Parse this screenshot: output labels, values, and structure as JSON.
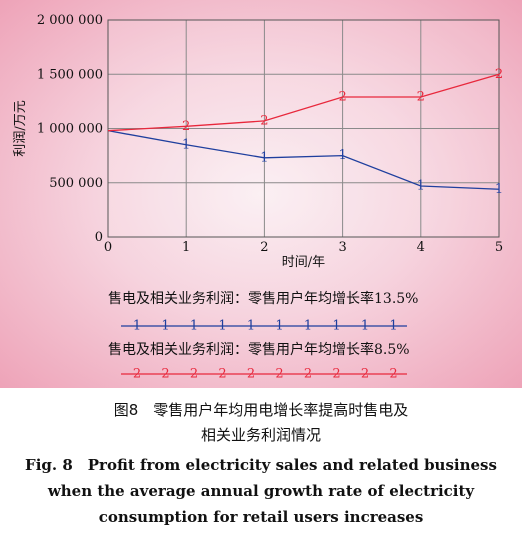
{
  "chart_data": {
    "type": "line",
    "xlabel": "时间/年",
    "ylabel": "利润/万元",
    "x": [
      0,
      1,
      2,
      3,
      4,
      5
    ],
    "xlim": [
      0,
      5
    ],
    "ylim": [
      0,
      2000000
    ],
    "y_ticks": [
      0,
      500000,
      1000000,
      1500000,
      2000000
    ],
    "y_tick_labels": [
      "0",
      "500 000",
      "1 000 000",
      "1 500 000",
      "2 000 000"
    ],
    "x_tick_labels": [
      "0",
      "1",
      "2",
      "3",
      "4",
      "5"
    ],
    "grid": true,
    "legend_position": "bottom",
    "series": [
      {
        "name": "售电及相关业务利润：零售用户年均增长率13.5%",
        "marker": "1",
        "color": "#1f3f9e",
        "values": [
          980000,
          850000,
          730000,
          750000,
          470000,
          440000
        ]
      },
      {
        "name": "售电及相关业务利润：零售用户年均增长率8.5%",
        "marker": "2",
        "color": "#e8283c",
        "values": [
          980000,
          1020000,
          1070000,
          1290000,
          1290000,
          1500000
        ]
      }
    ]
  },
  "caption": {
    "cn_line1": "图8　零售用户年均用电增长率提高时售电及",
    "cn_line2": "相关业务利润情况",
    "en_line1": "Fig. 8　Profit from electricity sales and related business",
    "en_line2": "when the average annual growth rate of electricity",
    "en_line3": "consumption for retail users increases"
  }
}
